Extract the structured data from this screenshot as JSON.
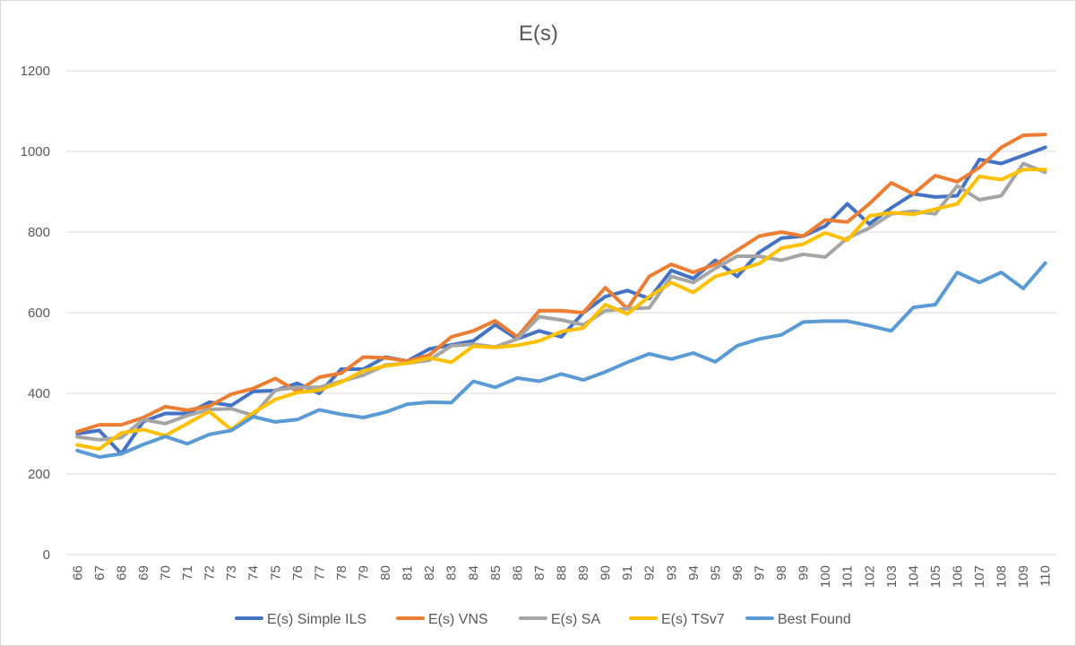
{
  "chart_data": {
    "type": "line",
    "title": "E(s)",
    "xlabel": "",
    "ylabel": "",
    "ylim": [
      0,
      1200
    ],
    "yticks": [
      0,
      200,
      400,
      600,
      800,
      1000,
      1200
    ],
    "grid": "horizontal",
    "legend_position": "bottom",
    "categories": [
      66,
      67,
      68,
      69,
      70,
      71,
      72,
      73,
      74,
      75,
      76,
      77,
      78,
      79,
      80,
      81,
      82,
      83,
      84,
      85,
      86,
      87,
      88,
      89,
      90,
      91,
      92,
      93,
      94,
      95,
      96,
      97,
      98,
      99,
      100,
      101,
      102,
      103,
      104,
      105,
      106,
      107,
      108,
      109,
      110
    ],
    "series": [
      {
        "name": "E(s) Simple ILS",
        "color": "#4472C4",
        "values": [
          300,
          308,
          250,
          330,
          350,
          350,
          378,
          370,
          405,
          407,
          425,
          400,
          460,
          460,
          490,
          480,
          510,
          520,
          530,
          570,
          535,
          555,
          540,
          600,
          640,
          655,
          635,
          705,
          685,
          730,
          690,
          750,
          785,
          790,
          815,
          870,
          820,
          860,
          895,
          887,
          890,
          980,
          970,
          990,
          1010
        ]
      },
      {
        "name": "E(s) VNS",
        "color": "#ED7D31",
        "values": [
          305,
          322,
          322,
          340,
          367,
          358,
          368,
          398,
          412,
          437,
          405,
          440,
          450,
          490,
          488,
          480,
          495,
          540,
          555,
          580,
          540,
          605,
          605,
          600,
          662,
          610,
          690,
          720,
          700,
          720,
          755,
          790,
          800,
          790,
          830,
          825,
          870,
          922,
          895,
          940,
          925,
          960,
          1010,
          1040,
          1042
        ]
      },
      {
        "name": "E(s) SA",
        "color": "#A5A5A5",
        "values": [
          292,
          285,
          290,
          335,
          325,
          345,
          360,
          362,
          345,
          408,
          415,
          415,
          430,
          445,
          470,
          475,
          482,
          518,
          522,
          515,
          535,
          590,
          582,
          570,
          605,
          610,
          612,
          690,
          675,
          710,
          740,
          740,
          730,
          745,
          738,
          785,
          810,
          845,
          852,
          845,
          915,
          880,
          890,
          970,
          948
        ]
      },
      {
        "name": "E(s) TSv7",
        "color": "#FFC000",
        "values": [
          272,
          262,
          302,
          310,
          295,
          325,
          355,
          310,
          352,
          385,
          402,
          408,
          428,
          456,
          468,
          475,
          488,
          477,
          517,
          514,
          519,
          530,
          553,
          562,
          620,
          597,
          640,
          675,
          650,
          690,
          705,
          722,
          760,
          770,
          798,
          780,
          840,
          848,
          844,
          857,
          870,
          938,
          930,
          955,
          955
        ]
      },
      {
        "name": "Best Found",
        "color": "#5B9BD5",
        "values": [
          258,
          242,
          250,
          273,
          293,
          275,
          298,
          308,
          342,
          329,
          335,
          359,
          348,
          340,
          353,
          373,
          378,
          377,
          430,
          415,
          438,
          430,
          448,
          433,
          453,
          477,
          498,
          485,
          500,
          478,
          518,
          535,
          545,
          577,
          579,
          579,
          568,
          555,
          613,
          620,
          700,
          675,
          700,
          660,
          723
        ]
      }
    ]
  }
}
